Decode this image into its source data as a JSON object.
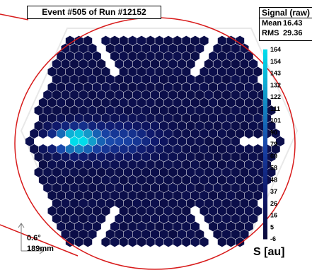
{
  "chart_data": {
    "type": "heatmap",
    "title": "Event #505 of Run #12152",
    "stats": {
      "header": "Signal (raw)",
      "rows": [
        {
          "label": "Mean",
          "value": "16.43"
        },
        {
          "label": "RMS",
          "value": "29.36"
        }
      ]
    },
    "colorbar": {
      "label": "S [au]",
      "ticks": [
        "164",
        "154",
        "143",
        "132",
        "122",
        "111",
        "101",
        "90",
        "79",
        "69",
        "58",
        "48",
        "37",
        "26",
        "16",
        "5",
        "-6"
      ],
      "range": [
        -6,
        164
      ]
    },
    "scale": {
      "angle": "0.6°",
      "length": "189mm"
    },
    "shower": {
      "peak_signal": 164,
      "background_signal": 8,
      "note_center_region": "left of camera center, elongated along horizontal axis"
    },
    "colors": {
      "background_pixel": "#0b0b45",
      "ellipse": "#d81b1b",
      "guide_line": "#d81b1b"
    }
  }
}
